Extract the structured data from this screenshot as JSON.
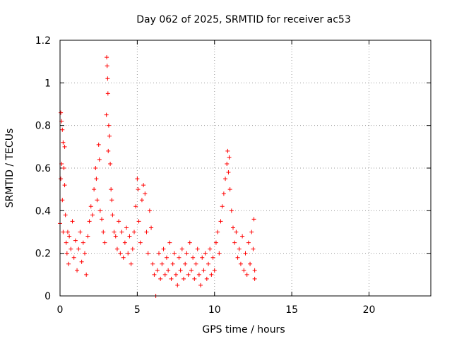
{
  "chart_data": {
    "type": "scatter",
    "title": "Day 062 of 2025, SRMTID for receiver ac53",
    "xlabel": "GPS time / hours",
    "ylabel": "SRMTID / TECUs",
    "xlim": [
      0,
      24
    ],
    "ylim": [
      0,
      1.2
    ],
    "x_ticks": [
      0,
      5,
      10,
      15,
      20
    ],
    "x_tick_labels": [
      "0",
      "5",
      "10",
      "15",
      "20"
    ],
    "y_ticks": [
      0,
      0.2,
      0.4,
      0.6,
      0.8,
      1,
      1.2
    ],
    "y_tick_labels": [
      "0",
      "0.2",
      "0.4",
      "0.6",
      "0.8",
      "1",
      "1.2"
    ],
    "grid": true,
    "marker": "+",
    "color": "#ff0000",
    "series": [
      {
        "name": "SRMTID",
        "points": [
          [
            0.0,
            0.34
          ],
          [
            0.05,
            0.55
          ],
          [
            0.05,
            0.86
          ],
          [
            0.1,
            0.82
          ],
          [
            0.1,
            0.62
          ],
          [
            0.15,
            0.78
          ],
          [
            0.15,
            0.45
          ],
          [
            0.2,
            0.72
          ],
          [
            0.2,
            0.3
          ],
          [
            0.25,
            0.6
          ],
          [
            0.3,
            0.52
          ],
          [
            0.3,
            0.7
          ],
          [
            0.35,
            0.38
          ],
          [
            0.4,
            0.25
          ],
          [
            0.45,
            0.2
          ],
          [
            0.5,
            0.3
          ],
          [
            0.55,
            0.15
          ],
          [
            0.6,
            0.28
          ],
          [
            0.7,
            0.22
          ],
          [
            0.8,
            0.35
          ],
          [
            0.9,
            0.18
          ],
          [
            1.0,
            0.26
          ],
          [
            1.1,
            0.12
          ],
          [
            1.2,
            0.22
          ],
          [
            1.3,
            0.3
          ],
          [
            1.4,
            0.16
          ],
          [
            1.5,
            0.25
          ],
          [
            1.6,
            0.2
          ],
          [
            1.7,
            0.1
          ],
          [
            1.8,
            0.28
          ],
          [
            1.9,
            0.35
          ],
          [
            2.0,
            0.42
          ],
          [
            2.1,
            0.38
          ],
          [
            2.2,
            0.5
          ],
          [
            2.3,
            0.6
          ],
          [
            2.35,
            0.55
          ],
          [
            2.4,
            0.45
          ],
          [
            2.5,
            0.71
          ],
          [
            2.55,
            0.64
          ],
          [
            2.6,
            0.4
          ],
          [
            2.7,
            0.36
          ],
          [
            2.8,
            0.3
          ],
          [
            2.9,
            0.25
          ],
          [
            3.0,
            0.85
          ],
          [
            3.02,
            1.12
          ],
          [
            3.05,
            1.08
          ],
          [
            3.08,
            1.02
          ],
          [
            3.1,
            0.95
          ],
          [
            3.12,
            0.68
          ],
          [
            3.15,
            0.8
          ],
          [
            3.2,
            0.75
          ],
          [
            3.25,
            0.62
          ],
          [
            3.3,
            0.5
          ],
          [
            3.35,
            0.45
          ],
          [
            3.4,
            0.38
          ],
          [
            3.5,
            0.3
          ],
          [
            3.6,
            0.28
          ],
          [
            3.7,
            0.22
          ],
          [
            3.8,
            0.35
          ],
          [
            3.9,
            0.2
          ],
          [
            4.0,
            0.3
          ],
          [
            4.1,
            0.18
          ],
          [
            4.2,
            0.25
          ],
          [
            4.3,
            0.32
          ],
          [
            4.4,
            0.2
          ],
          [
            4.5,
            0.28
          ],
          [
            4.6,
            0.15
          ],
          [
            4.7,
            0.22
          ],
          [
            4.8,
            0.3
          ],
          [
            4.9,
            0.42
          ],
          [
            5.0,
            0.55
          ],
          [
            5.05,
            0.5
          ],
          [
            5.1,
            0.35
          ],
          [
            5.2,
            0.25
          ],
          [
            5.3,
            0.45
          ],
          [
            5.4,
            0.52
          ],
          [
            5.5,
            0.48
          ],
          [
            5.6,
            0.3
          ],
          [
            5.7,
            0.2
          ],
          [
            5.8,
            0.4
          ],
          [
            5.9,
            0.32
          ],
          [
            6.0,
            0.15
          ],
          [
            6.1,
            0.1
          ],
          [
            6.2,
            0.0
          ],
          [
            6.3,
            0.12
          ],
          [
            6.4,
            0.2
          ],
          [
            6.5,
            0.08
          ],
          [
            6.6,
            0.15
          ],
          [
            6.7,
            0.22
          ],
          [
            6.8,
            0.1
          ],
          [
            6.9,
            0.18
          ],
          [
            7.0,
            0.12
          ],
          [
            7.1,
            0.25
          ],
          [
            7.2,
            0.08
          ],
          [
            7.3,
            0.15
          ],
          [
            7.4,
            0.2
          ],
          [
            7.5,
            0.1
          ],
          [
            7.6,
            0.05
          ],
          [
            7.7,
            0.18
          ],
          [
            7.8,
            0.12
          ],
          [
            7.9,
            0.22
          ],
          [
            8.0,
            0.08
          ],
          [
            8.1,
            0.15
          ],
          [
            8.2,
            0.2
          ],
          [
            8.3,
            0.1
          ],
          [
            8.4,
            0.25
          ],
          [
            8.5,
            0.12
          ],
          [
            8.6,
            0.18
          ],
          [
            8.7,
            0.08
          ],
          [
            8.8,
            0.15
          ],
          [
            8.9,
            0.22
          ],
          [
            9.0,
            0.1
          ],
          [
            9.1,
            0.05
          ],
          [
            9.2,
            0.18
          ],
          [
            9.3,
            0.12
          ],
          [
            9.4,
            0.2
          ],
          [
            9.5,
            0.08
          ],
          [
            9.6,
            0.15
          ],
          [
            9.7,
            0.22
          ],
          [
            9.8,
            0.1
          ],
          [
            9.9,
            0.18
          ],
          [
            10.0,
            0.12
          ],
          [
            10.1,
            0.25
          ],
          [
            10.2,
            0.3
          ],
          [
            10.3,
            0.2
          ],
          [
            10.4,
            0.35
          ],
          [
            10.5,
            0.42
          ],
          [
            10.6,
            0.48
          ],
          [
            10.7,
            0.55
          ],
          [
            10.8,
            0.62
          ],
          [
            10.85,
            0.68
          ],
          [
            10.9,
            0.58
          ],
          [
            10.95,
            0.65
          ],
          [
            11.0,
            0.5
          ],
          [
            11.1,
            0.4
          ],
          [
            11.2,
            0.32
          ],
          [
            11.3,
            0.25
          ],
          [
            11.4,
            0.3
          ],
          [
            11.5,
            0.18
          ],
          [
            11.6,
            0.22
          ],
          [
            11.7,
            0.15
          ],
          [
            11.8,
            0.28
          ],
          [
            11.9,
            0.12
          ],
          [
            12.0,
            0.2
          ],
          [
            12.1,
            0.1
          ],
          [
            12.2,
            0.25
          ],
          [
            12.3,
            0.15
          ],
          [
            12.4,
            0.3
          ],
          [
            12.5,
            0.22
          ],
          [
            12.55,
            0.36
          ],
          [
            12.6,
            0.08
          ],
          [
            12.6,
            0.12
          ]
        ]
      }
    ]
  }
}
